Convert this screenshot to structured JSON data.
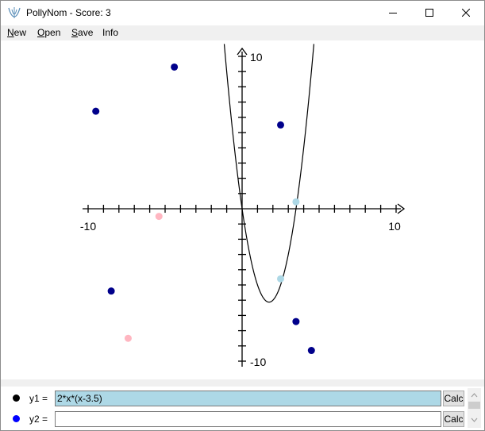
{
  "window": {
    "title": "PollyNom - Score: 3"
  },
  "menu": [
    {
      "mnemonic": "N",
      "rest": "ew"
    },
    {
      "mnemonic": "O",
      "rest": "pen"
    },
    {
      "mnemonic": "S",
      "rest": "ave"
    },
    {
      "mnemonic": "",
      "rest": "Info"
    }
  ],
  "graph": {
    "xlim": [
      -10,
      10
    ],
    "ylim": [
      -10,
      10
    ],
    "x_tick_labels": [
      "-10",
      "10"
    ],
    "y_tick_labels": [
      "10",
      "-10"
    ],
    "curve": {
      "expression": "2*x*(x-3.5)",
      "color": "#000000"
    },
    "targets_good": {
      "color": "#00008b",
      "points": [
        [
          -9.5,
          6.4
        ],
        [
          -4.4,
          9.3
        ],
        [
          2.5,
          5.5
        ],
        [
          -8.5,
          -5.4
        ],
        [
          3.5,
          -7.4
        ],
        [
          4.5,
          -9.3
        ]
      ]
    },
    "targets_bad": {
      "color": "#ffb6c1",
      "points": [
        [
          -5.4,
          -0.5
        ],
        [
          -7.4,
          -8.5
        ]
      ]
    },
    "targets_hit": {
      "color": "#add8e6",
      "points": [
        [
          3.5,
          0.45
        ],
        [
          2.5,
          -4.6
        ]
      ]
    }
  },
  "equations": [
    {
      "label": "y1 =",
      "value": "2*x*(x-3.5)",
      "color": "#000000",
      "bg": "#add8e6",
      "calc": "Calc"
    },
    {
      "label": "y2 =",
      "value": "",
      "color": "#0000ff",
      "bg": "#ffffff",
      "calc": "Calc"
    }
  ]
}
